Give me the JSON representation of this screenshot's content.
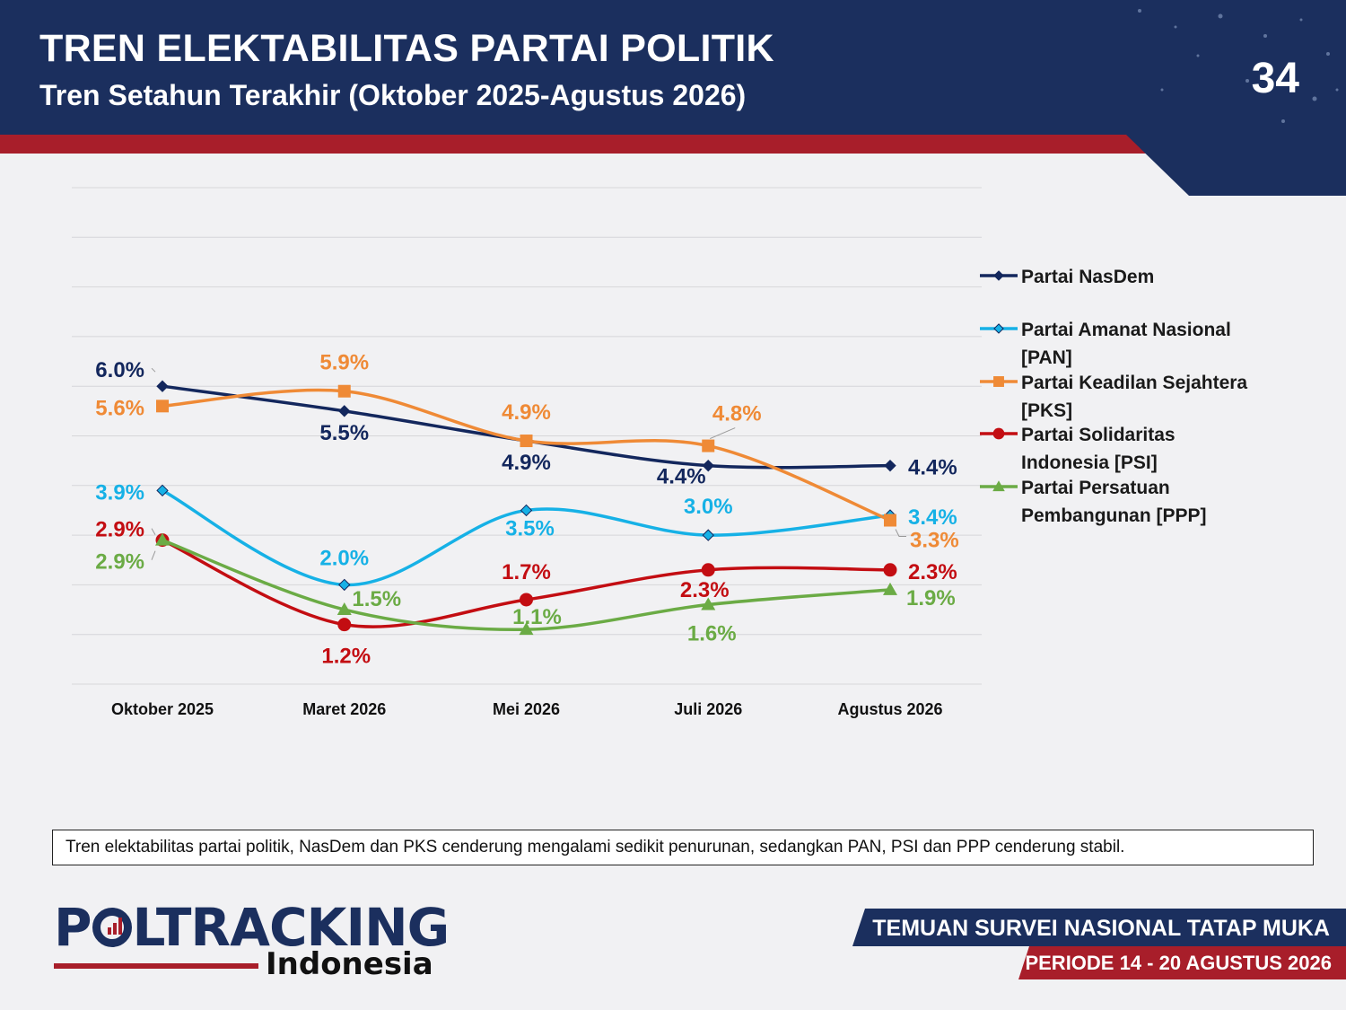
{
  "header": {
    "title": "TREN ELEKTABILITAS PARTAI POLITIK",
    "subtitle": "Tren Setahun Terakhir (Oktober 2025-Agustus 2026)",
    "page_number": "34"
  },
  "colors": {
    "header_bg": "#1b2f5e",
    "accent_red": "#a81e2a"
  },
  "chart_data": {
    "type": "line",
    "categories": [
      "Oktober 2025",
      "Maret 2026",
      "Mei 2026",
      "Juli 2026",
      "Agustus 2026"
    ],
    "ylim": [
      0,
      10
    ],
    "grid": true,
    "legend_position": "right",
    "series": [
      {
        "name": "Partai NasDem",
        "color": "#13275d",
        "marker": "diamond",
        "values": [
          6.0,
          5.5,
          4.9,
          4.4,
          4.4
        ],
        "labels": [
          "6.0%",
          "5.5%",
          "4.9%",
          "4.4%",
          "4.4%"
        ]
      },
      {
        "name": "Partai Amanat Nasional [PAN]",
        "color": "#16b1e6",
        "marker": "diamond",
        "values": [
          3.9,
          2.0,
          3.5,
          3.0,
          3.4
        ],
        "labels": [
          "3.9%",
          "2.0%",
          "3.5%",
          "3.0%",
          "3.4%"
        ]
      },
      {
        "name": "Partai Keadilan Sejahtera [PKS]",
        "color": "#ef8a36",
        "marker": "square",
        "values": [
          5.6,
          5.9,
          4.9,
          4.8,
          3.3
        ],
        "labels": [
          "5.6%",
          "5.9%",
          "4.9%",
          "4.8%",
          "3.3%"
        ]
      },
      {
        "name": "Partai Solidaritas Indonesia [PSI]",
        "color": "#c30d12",
        "marker": "circle",
        "values": [
          2.9,
          1.2,
          1.7,
          2.3,
          2.3
        ],
        "labels": [
          "2.9%",
          "1.2%",
          "1.7%",
          "2.3%",
          "2.3%"
        ]
      },
      {
        "name": "Partai Persatuan Pembangunan [PPP]",
        "color": "#6bab45",
        "marker": "triangle",
        "values": [
          2.9,
          1.5,
          1.1,
          1.6,
          1.9
        ],
        "labels": [
          "2.9%",
          "1.5%",
          "1.1%",
          "1.6%",
          "1.9%"
        ]
      }
    ]
  },
  "note": "Tren elektabilitas partai politik, NasDem dan PKS cenderung mengalami sedikit penurunan, sedangkan PAN,  PSI dan PPP cenderung stabil.",
  "footer": {
    "logo_main_1": "P",
    "logo_main_2": "LTRACKING",
    "logo_sub": "Indonesia",
    "survey_title": "TEMUAN SURVEI NASIONAL TATAP MUKA",
    "period": "PERIODE 14 - 20 AGUSTUS 2026"
  }
}
